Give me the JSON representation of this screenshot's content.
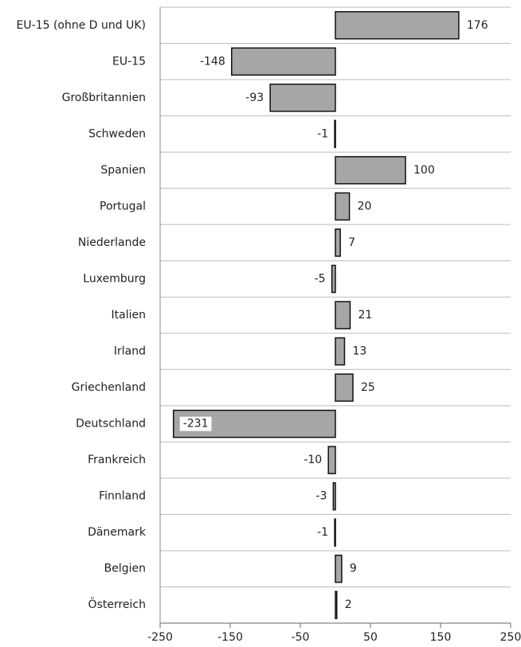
{
  "chart_data": {
    "type": "bar",
    "orientation": "horizontal",
    "categories": [
      "EU-15 (ohne D und UK)",
      "EU-15",
      "Großbritannien",
      "Schweden",
      "Spanien",
      "Portugal",
      "Niederlande",
      "Luxemburg",
      "Italien",
      "Irland",
      "Griechenland",
      "Deutschland",
      "Frankreich",
      "Finnland",
      "Dänemark",
      "Belgien",
      "Österreich"
    ],
    "values": [
      176,
      -148,
      -93,
      -1,
      100,
      20,
      7,
      -5,
      21,
      13,
      25,
      -231,
      -10,
      -3,
      -1,
      9,
      2
    ],
    "color": "#a6a6a6",
    "xlim": [
      -250,
      250
    ],
    "xticks": [
      -250,
      -150,
      -50,
      50,
      150,
      250
    ],
    "grid": true
  }
}
